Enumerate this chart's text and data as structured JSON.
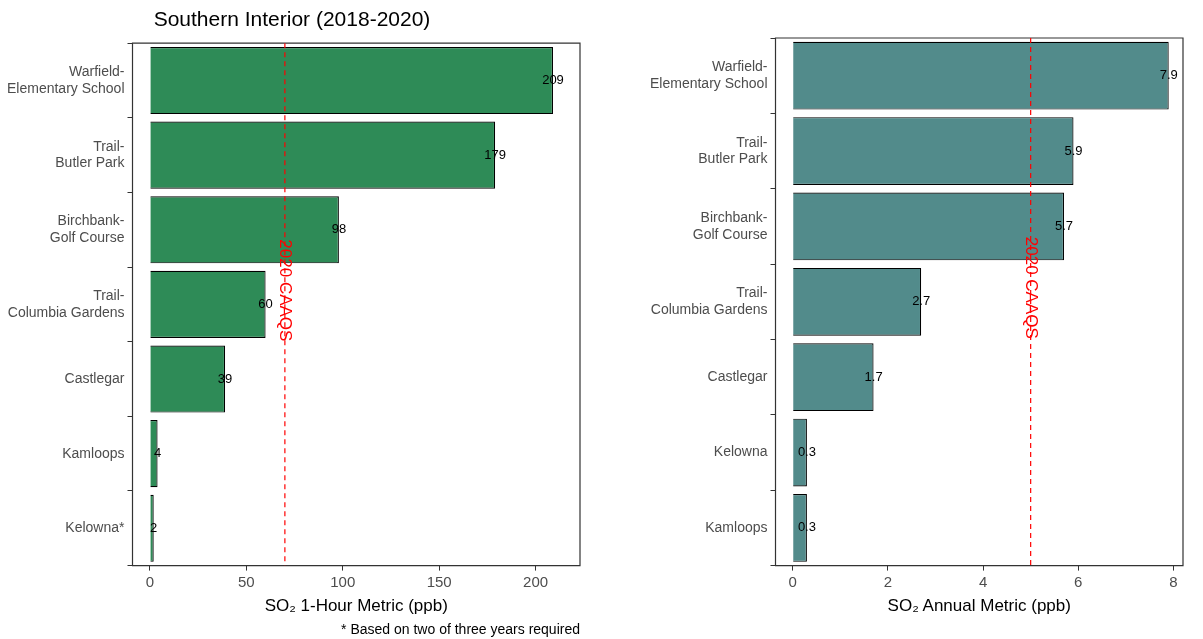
{
  "chart_data": [
    {
      "type": "bar",
      "orientation": "horizontal",
      "title": "Southern Interior (2018-2020)",
      "xlabel": "SO₂ 1-Hour Metric (ppb)",
      "categories": [
        "Warfield-\nElementary School",
        "Trail-\nButler Park",
        "Birchbank-\nGolf Course",
        "Trail-\nColumbia Gardens",
        "Castlegar",
        "Kamloops",
        "Kelowna*"
      ],
      "values": [
        209,
        179,
        98,
        60,
        39,
        4,
        2
      ],
      "color": "#2e8b57",
      "xlim": [
        -9,
        223
      ],
      "xticks": [
        0,
        50,
        100,
        150,
        200
      ],
      "grid": false,
      "data_labels": true,
      "ref_lines": [
        {
          "axis": "x",
          "value": 70,
          "label": "2020 CAAQS",
          "color": "#ff0000",
          "line_style": "dashed"
        }
      ],
      "annotations": [
        "* Based on two of three years required"
      ]
    },
    {
      "type": "bar",
      "orientation": "horizontal",
      "xlabel": "SO₂ Annual Metric (ppb)",
      "categories": [
        "Warfield-\nElementary School",
        "Trail-\nButler Park",
        "Birchbank-\nGolf Course",
        "Trail-\nColumbia Gardens",
        "Castlegar",
        "Kelowna",
        "Kamloops"
      ],
      "values": [
        7.9,
        5.9,
        5.7,
        2.7,
        1.7,
        0.3,
        0.3
      ],
      "color": "#528b8b",
      "xlim": [
        -0.36,
        8.2
      ],
      "xticks": [
        0,
        2,
        4,
        6,
        8
      ],
      "grid": false,
      "data_labels": true,
      "ref_lines": [
        {
          "axis": "x",
          "value": 5,
          "label": "2020 CAAQS",
          "color": "#ff0000",
          "line_style": "dashed"
        }
      ]
    }
  ]
}
